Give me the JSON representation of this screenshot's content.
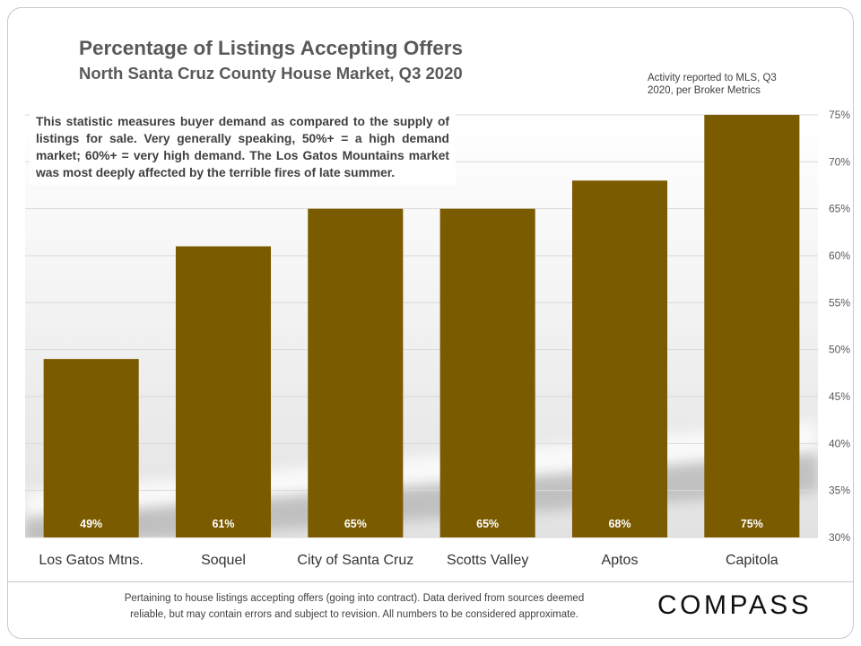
{
  "chart_data": {
    "type": "bar",
    "title": "Percentage of Listings Accepting Offers",
    "subtitle": "North Santa Cruz County House Market, Q3 2020",
    "categories": [
      "Los Gatos Mtns.",
      "Soquel",
      "City of Santa Cruz",
      "Scotts Valley",
      "Aptos",
      "Capitola"
    ],
    "values": [
      49,
      61,
      65,
      65,
      68,
      75
    ],
    "data_labels": [
      "49%",
      "61%",
      "65%",
      "65%",
      "68%",
      "75%"
    ],
    "ylim": [
      30,
      75
    ],
    "yticks": [
      30,
      35,
      40,
      45,
      50,
      55,
      60,
      65,
      70,
      75
    ],
    "ytick_labels": [
      "30%",
      "35%",
      "40%",
      "45%",
      "50%",
      "55%",
      "60%",
      "65%",
      "70%",
      "75%"
    ],
    "y_axis_side": "right",
    "grid": true,
    "colors": {
      "bar": "#7a5b00",
      "data_label": "#ffffff",
      "grid": "#d9d9d9"
    },
    "annotations": [
      {
        "text": "Activity reported to MLS, Q3 2020, per Broker Metrics"
      },
      {
        "text": "This statistic measures buyer demand as compared to the supply of listings for sale. Very generally speaking, 50%+ = a high demand market; 60%+ = very high demand. The Los Gatos Mountains market was most deeply affected by the terrible fires of late summer."
      }
    ]
  },
  "footer": {
    "disclaimer": "Pertaining to house listings accepting offers (going into contract). Data derived from sources deemed reliable, but may contain errors and subject to revision. All numbers to be considered approximate.",
    "logo_text": "COMPASS"
  }
}
